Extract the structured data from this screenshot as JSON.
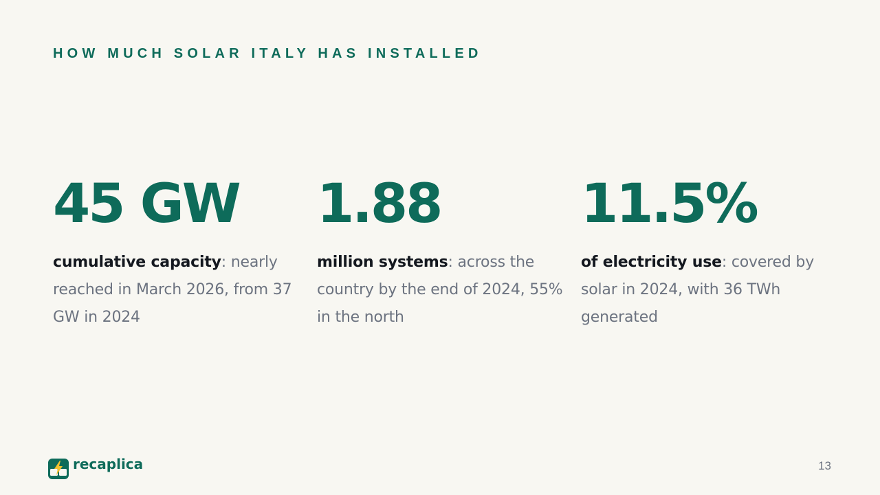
{
  "slide": {
    "eyebrow": "HOW MUCH SOLAR ITALY HAS INSTALLED",
    "stats": [
      {
        "value": "45 GW",
        "lead": "cumulative capacity",
        "rest": ": nearly reached in March 2026, from 37 GW in 2024"
      },
      {
        "value": "1.88",
        "lead": "million systems",
        "rest": ": across the country by the end of 2024, 55% in the north"
      },
      {
        "value": "11.5%",
        "lead": "of electricity use",
        "rest": ": covered by solar in 2024, with 36 TWh generated"
      }
    ],
    "page_number": "13"
  },
  "brand": {
    "name": "recaplica",
    "logo_icon": "solar-bolt-logo-icon"
  },
  "colors": {
    "background": "#f8f7f2",
    "accent": "#0e6b5a",
    "text_dark": "#14181f",
    "text_muted": "#6c7380",
    "logo_bolt": "#f2c230"
  }
}
